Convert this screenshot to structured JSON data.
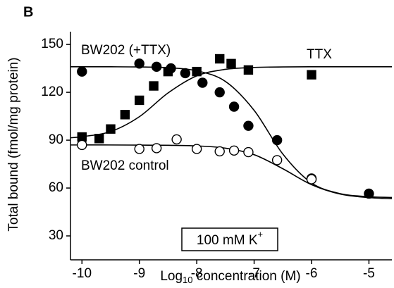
{
  "chart_data": {
    "type": "scatter",
    "panel_label": "B",
    "xlabel": {
      "text": "Log",
      "sub": "10",
      "rest": " concentration (M)"
    },
    "ylabel": "Total bound (fmol/mg protein)",
    "annotation": {
      "text": "100 mM K",
      "sup": "+"
    },
    "xlim": [
      -10.2,
      -4.6
    ],
    "ylim": [
      15,
      158
    ],
    "xticks": [
      -10,
      -9,
      -8,
      -7,
      -6,
      -5
    ],
    "yticks": [
      30,
      60,
      90,
      120,
      150
    ],
    "fit_x": [
      -10.2,
      -10,
      -9.5,
      -9,
      -8.5,
      -8,
      -7.5,
      -7,
      -6.5,
      -6,
      -5.5,
      -5,
      -4.6
    ],
    "series": [
      {
        "name": "TTX",
        "marker": "square",
        "color": "#000000",
        "filled": true,
        "x": [
          -10,
          -9.7,
          -9.5,
          -9.25,
          -9,
          -8.75,
          -8.5,
          -8,
          -7.6,
          -7.4,
          -7.1,
          -6
        ],
        "values": [
          92,
          91,
          97,
          106,
          115,
          124,
          133,
          133,
          141,
          138,
          134,
          131
        ],
        "fit_values": [
          91.5,
          92.2,
          95.4,
          104.7,
          119.6,
          130.3,
          134.4,
          135.6,
          135.9,
          136,
          136,
          136,
          136
        ]
      },
      {
        "name": "BW202 (+TTX)",
        "marker": "circle",
        "color": "#000000",
        "filled": true,
        "x": [
          -10,
          -9,
          -8.7,
          -8.45,
          -8.2,
          -7.9,
          -7.6,
          -7.35,
          -7.1,
          -6.6,
          -6,
          -5
        ],
        "values": [
          133,
          138,
          136,
          135,
          132,
          126,
          120,
          111,
          99,
          90,
          66,
          56.5
        ],
        "fit_values": [
          136,
          136,
          136,
          135.9,
          135.4,
          133.5,
          126.8,
          108.7,
          81.3,
          63.2,
          56.5,
          54.6,
          54.1
        ]
      },
      {
        "name": "BW202 control",
        "marker": "circle",
        "color": "#000000",
        "filled": false,
        "x": [
          -10,
          -9,
          -8.7,
          -8.35,
          -8,
          -7.6,
          -7.35,
          -7.1,
          -6.6,
          -6
        ],
        "values": [
          87,
          84.5,
          85,
          90.5,
          84.5,
          83,
          83.5,
          82.5,
          77.5,
          65.5
        ],
        "fit_values": [
          87,
          87,
          87,
          86.9,
          86.8,
          86.4,
          85,
          80.9,
          72.1,
          62.1,
          56.2,
          54,
          53.3
        ]
      }
    ]
  }
}
